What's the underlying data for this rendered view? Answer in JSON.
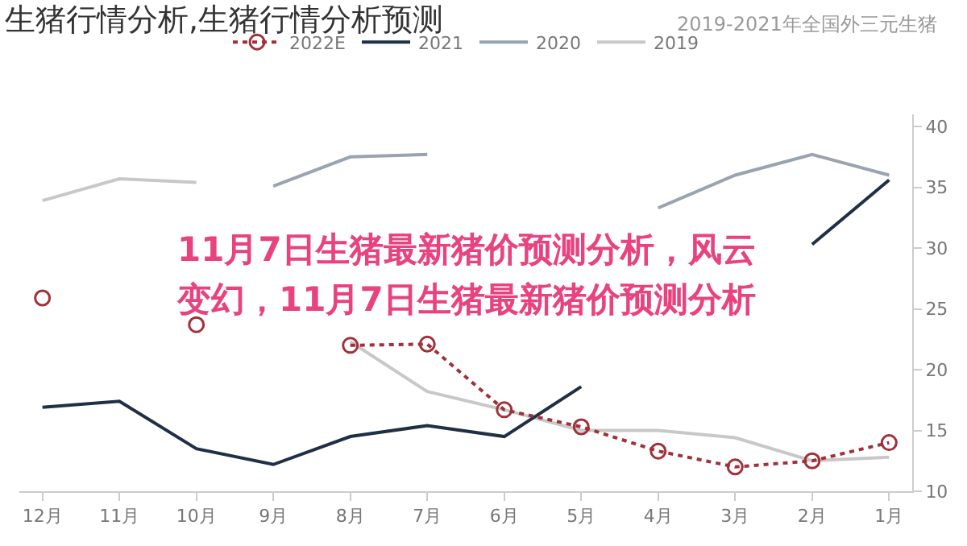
{
  "chart_data": {
    "type": "line",
    "title": "生猪行情分析,生猪行情分析预测",
    "subtitle": "2019-2021年全国外三元生猪",
    "annotations": [
      "11月7日生猪最新猪价预测分析，风云",
      "变幻，11月7日生猪最新猪价预测分析"
    ],
    "categories": [
      "12月",
      "11月",
      "10月",
      "9月",
      "8月",
      "7月",
      "6月",
      "5月",
      "4月",
      "3月",
      "2月",
      "1月"
    ],
    "series": [
      {
        "name": "2019",
        "color": "#c8c8c8",
        "values": [
          33.9,
          35.7,
          35.4,
          null,
          22.3,
          18.2,
          16.7,
          15.0,
          15.0,
          14.4,
          12.5,
          12.8
        ]
      },
      {
        "name": "2020",
        "color": "#9aa3b0",
        "values": [
          null,
          null,
          null,
          35.1,
          37.5,
          37.7,
          null,
          null,
          33.3,
          36.0,
          37.7,
          36.0
        ]
      },
      {
        "name": "2021",
        "color": "#1f2f45",
        "values": [
          16.9,
          17.4,
          13.5,
          12.2,
          14.5,
          15.4,
          14.5,
          18.6,
          null,
          null,
          30.3,
          35.6
        ]
      },
      {
        "name": "2022E",
        "color": "#a0303a",
        "values": [
          25.9,
          null,
          23.7,
          null,
          22.0,
          22.1,
          16.7,
          15.3,
          13.3,
          12.0,
          12.5,
          14.0
        ],
        "marker": "circle",
        "line_style": "dotted"
      }
    ],
    "ylim": [
      10,
      41
    ],
    "yticks": [
      10,
      15,
      20,
      25,
      30,
      35,
      40
    ],
    "legend": "top",
    "marker": "none",
    "line_style": "solid"
  }
}
